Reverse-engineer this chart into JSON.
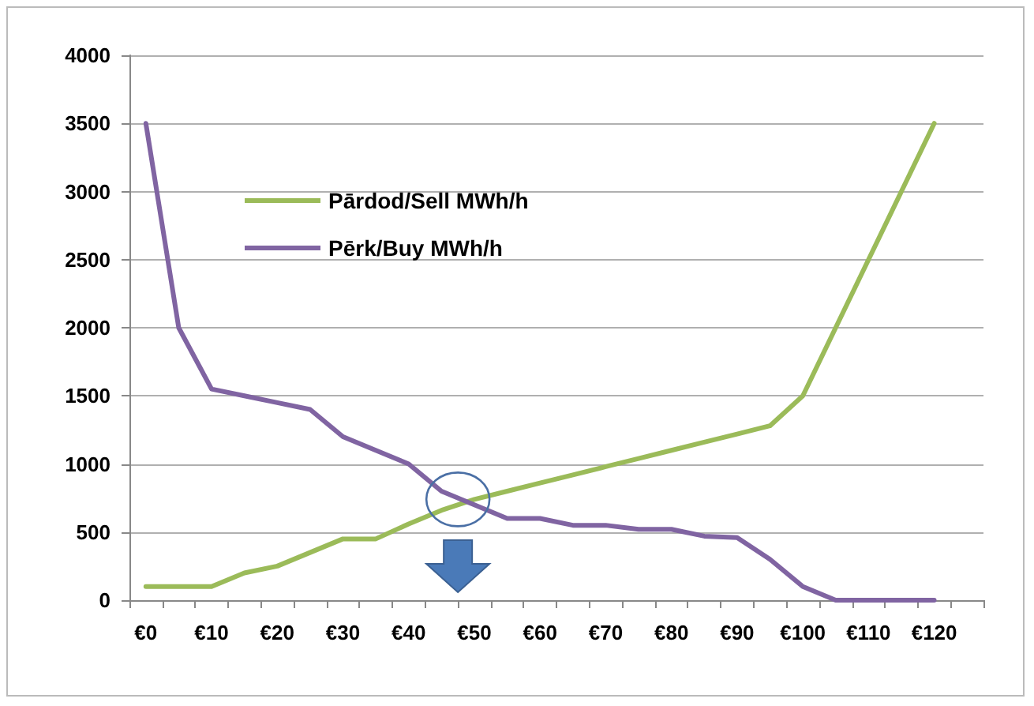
{
  "chart_data": {
    "type": "line",
    "categories": [
      "€0",
      null,
      "€10",
      null,
      "€20",
      null,
      "€30",
      null,
      "€40",
      null,
      "€50",
      null,
      "€60",
      null,
      "€70",
      null,
      "€80",
      null,
      "€90",
      null,
      "€100",
      null,
      "€110",
      null,
      "€120",
      null
    ],
    "series": [
      {
        "name": "Pārdod/Sell MWh/h",
        "color": "#9bbb59",
        "values": [
          100,
          100,
          100,
          200,
          250,
          350,
          450,
          450,
          560,
          660,
          740,
          800,
          860,
          920,
          980,
          1040,
          1100,
          1160,
          1220,
          1280,
          1500,
          2000,
          2500,
          3000,
          3500,
          null
        ]
      },
      {
        "name": "Pērk/Buy MWh/h",
        "color": "#8064a2",
        "values": [
          3500,
          2000,
          1550,
          1500,
          1450,
          1400,
          1200,
          1100,
          1000,
          800,
          700,
          600,
          600,
          550,
          550,
          520,
          520,
          470,
          460,
          300,
          100,
          0,
          0,
          0,
          0,
          null
        ]
      }
    ],
    "ylim": [
      0,
      4000
    ],
    "yticks": [
      0,
      500,
      1000,
      1500,
      2000,
      2500,
      3000,
      3500,
      4000
    ],
    "grid": "y",
    "legend": "top left",
    "marker": "none",
    "line_style": "solid"
  }
}
